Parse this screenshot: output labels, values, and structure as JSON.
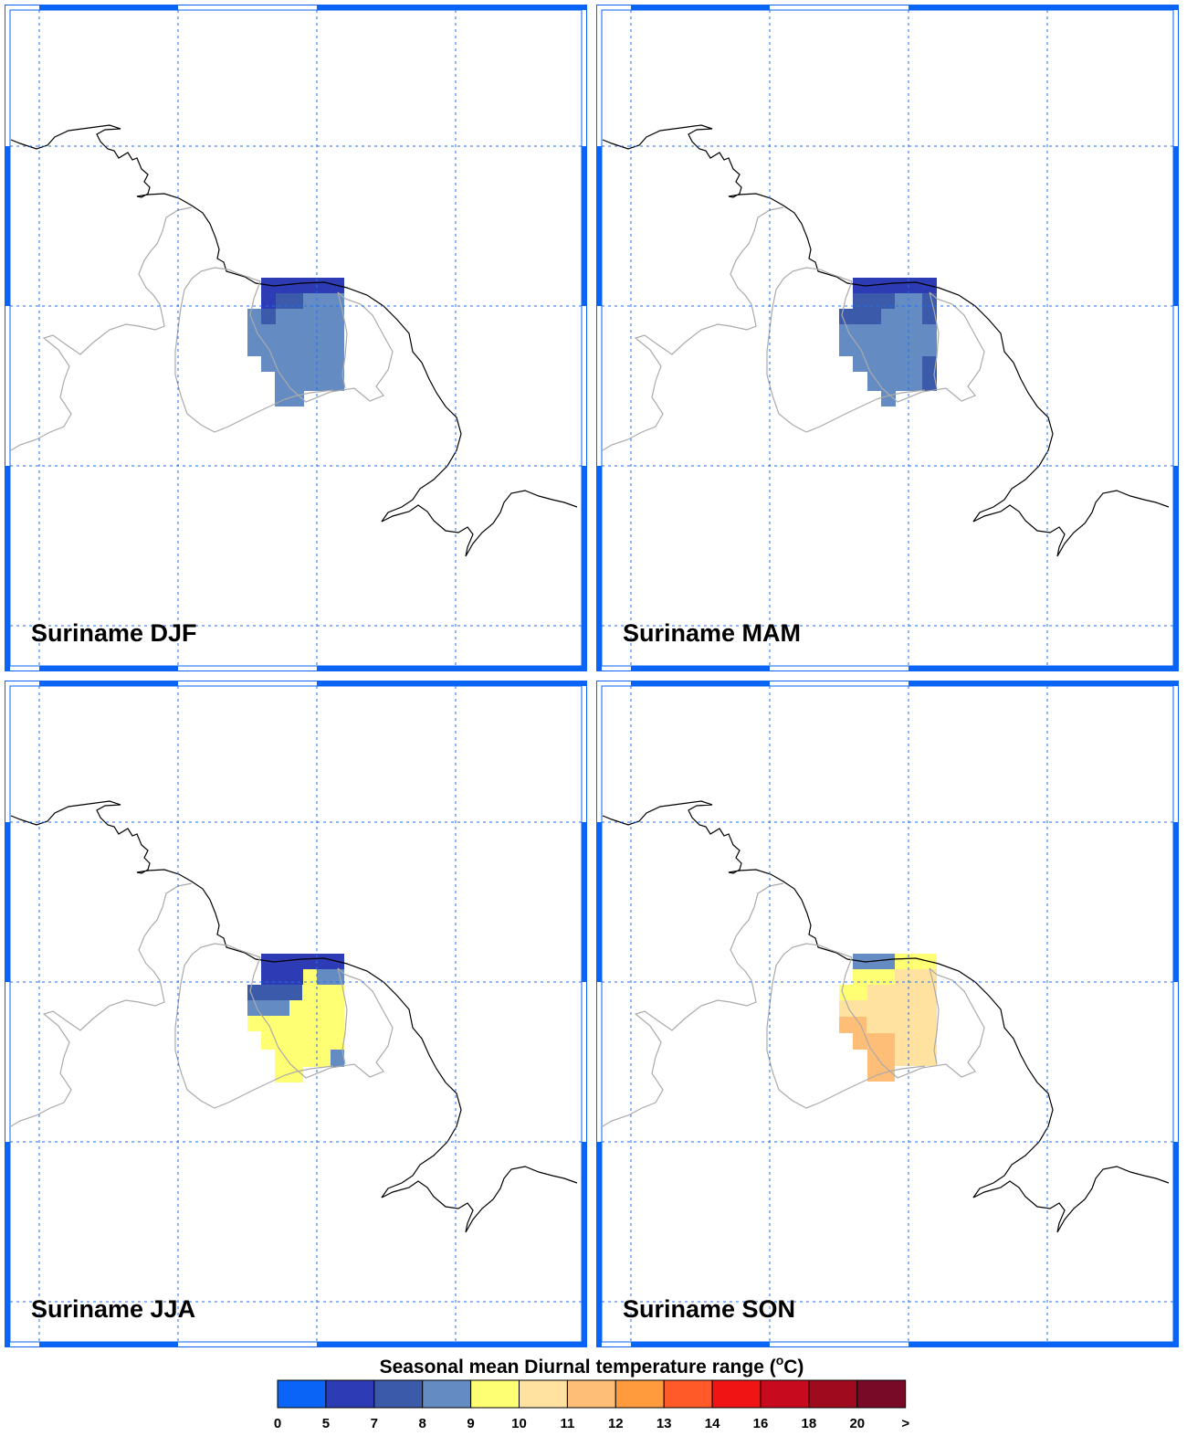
{
  "figure": {
    "legend_title_main": "Seasonal mean Diurnal temperature range (",
    "legend_title_unit_sup": "o",
    "legend_title_unit": "C)"
  },
  "panels": [
    {
      "title": "Suriname DJF",
      "season": "DJF"
    },
    {
      "title": "Suriname MAM",
      "season": "MAM"
    },
    {
      "title": "Suriname JJA",
      "season": "JJA"
    },
    {
      "title": "Suriname SON",
      "season": "SON"
    }
  ],
  "colorbar": {
    "colors": [
      "#0a64f5",
      "#2d3cb4",
      "#3c5aaa",
      "#648cc3",
      "#ffff73",
      "#ffe1a0",
      "#ffbe78",
      "#ff9b3c",
      "#ff5a28",
      "#f01414",
      "#c80a1e",
      "#a00a1e",
      "#780a28"
    ],
    "ticks": [
      "0",
      "5",
      "7",
      "8",
      "9",
      "10",
      "11",
      "12",
      "13",
      "14",
      "16",
      "18",
      "20",
      ">"
    ]
  },
  "map_style": {
    "gridline_color": "#1e6ef0",
    "coast_color": "#000000",
    "border_color": "#aaaaaa",
    "frame_color": "#0a64f5"
  }
}
